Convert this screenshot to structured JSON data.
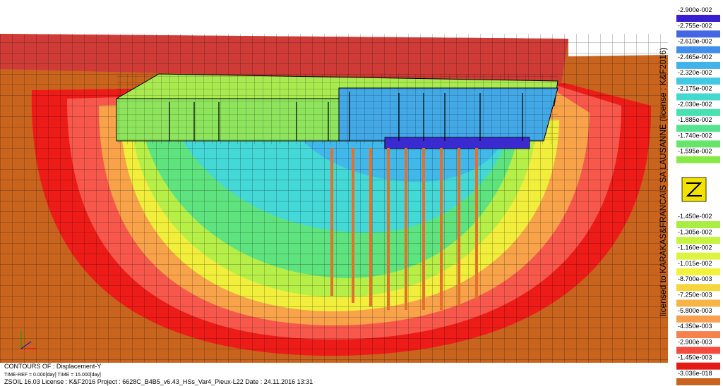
{
  "legend": {
    "labels": [
      "-2.900e-002",
      "-2.755e-002",
      "-2.610e-002",
      "-2.465e-002",
      "-2.320e-002",
      "-2.175e-002",
      "-2.030e-002",
      "-1.885e-002",
      "-1.740e-002",
      "-1.595e-002",
      "-1.450e-002",
      "-1.305e-002",
      "-1.160e-002",
      "-1.015e-002",
      "-8.700e-003",
      "-7.250e-003",
      "-5.800e-003",
      "-4.350e-003",
      "-2.900e-003",
      "-1.450e-003",
      "-3.036e-018"
    ],
    "colors": [
      "#3a1fd0",
      "#4566e4",
      "#3f8fea",
      "#41b2ea",
      "#42c9e2",
      "#44d9cf",
      "#48e2b2",
      "#55e38f",
      "#66e56a",
      "#88e945",
      "#a8ee42",
      "#c6f240",
      "#dcf33f",
      "#f2f23c",
      "#f7d53c",
      "#f7b445",
      "#f8a04f",
      "#f8804e",
      "#f54a3e",
      "#e41a16",
      "#c9631e"
    ]
  },
  "license": "licensed to KARAKAS&FRANCAIS SA LAUSANNE (license : K&F2016)",
  "info": {
    "contours": "CONTOURS OF : Displacement-Y",
    "time": "TIME-REF = 0.000[day]   TIME = 15.000[day]",
    "footer": "ZSOIL 16.03   License : K&F2016   Project : 6628C_B4B5_v6.43_HSs_Var4_Pieux-L22      Date : 24.11.2016  13:31"
  }
}
